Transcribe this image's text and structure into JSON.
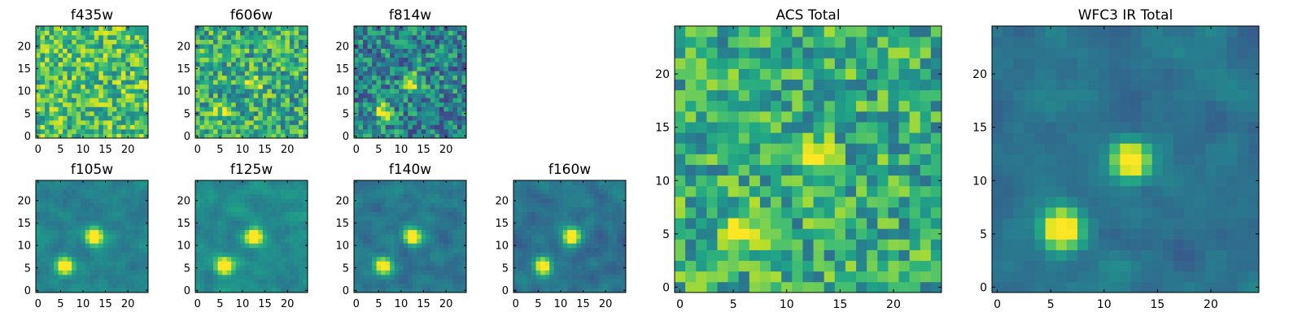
{
  "chart_data": [
    {
      "type": "heatmap",
      "title": "f435w",
      "grid_size": 25,
      "x_ticks": [
        "0",
        "5",
        "10",
        "15",
        "20"
      ],
      "y_ticks": [
        "0",
        "5",
        "10",
        "15",
        "20"
      ],
      "xlim": [
        -0.5,
        24.5
      ],
      "ylim": [
        -0.5,
        24.5
      ],
      "colormap": "viridis",
      "grid": false,
      "sources": []
    },
    {
      "type": "heatmap",
      "title": "f606w",
      "grid_size": 25,
      "x_ticks": [
        "0",
        "5",
        "10",
        "15",
        "20"
      ],
      "y_ticks": [
        "0",
        "5",
        "10",
        "15",
        "20"
      ],
      "xlim": [
        -0.5,
        24.5
      ],
      "ylim": [
        -0.5,
        24.5
      ],
      "colormap": "viridis",
      "grid": false,
      "sources": [
        {
          "x": 12.5,
          "y": 12.0,
          "amp": 0.35
        },
        {
          "x": 6.0,
          "y": 5.5,
          "amp": 0.35
        }
      ]
    },
    {
      "type": "heatmap",
      "title": "f814w",
      "grid_size": 25,
      "x_ticks": [
        "0",
        "5",
        "10",
        "15",
        "20"
      ],
      "y_ticks": [
        "0",
        "5",
        "10",
        "15",
        "20"
      ],
      "xlim": [
        -0.5,
        24.5
      ],
      "ylim": [
        -0.5,
        24.5
      ],
      "colormap": "viridis",
      "grid": false,
      "sources": [
        {
          "x": 12.5,
          "y": 12.0,
          "amp": 0.55
        },
        {
          "x": 6.0,
          "y": 5.5,
          "amp": 0.65
        }
      ]
    },
    {
      "type": "heatmap",
      "title": "f105w",
      "grid_size": 25,
      "x_ticks": [
        "0",
        "5",
        "10",
        "15",
        "20"
      ],
      "y_ticks": [
        "0",
        "5",
        "10",
        "15",
        "20"
      ],
      "xlim": [
        -0.5,
        24.5
      ],
      "ylim": [
        -0.5,
        24.5
      ],
      "colormap": "viridis",
      "grid": false,
      "sources": [
        {
          "x": 12.5,
          "y": 12.0,
          "amp": 0.85
        },
        {
          "x": 6.0,
          "y": 5.5,
          "amp": 0.85
        }
      ]
    },
    {
      "type": "heatmap",
      "title": "f125w",
      "grid_size": 25,
      "x_ticks": [
        "0",
        "5",
        "10",
        "15",
        "20"
      ],
      "y_ticks": [
        "0",
        "5",
        "10",
        "15",
        "20"
      ],
      "xlim": [
        -0.5,
        24.5
      ],
      "ylim": [
        -0.5,
        24.5
      ],
      "colormap": "viridis",
      "grid": false,
      "sources": [
        {
          "x": 12.5,
          "y": 12.0,
          "amp": 0.9
        },
        {
          "x": 6.0,
          "y": 5.5,
          "amp": 0.9
        }
      ]
    },
    {
      "type": "heatmap",
      "title": "f140w",
      "grid_size": 25,
      "x_ticks": [
        "0",
        "5",
        "10",
        "15",
        "20"
      ],
      "y_ticks": [
        "0",
        "5",
        "10",
        "15",
        "20"
      ],
      "xlim": [
        -0.5,
        24.5
      ],
      "ylim": [
        -0.5,
        24.5
      ],
      "colormap": "viridis",
      "grid": false,
      "sources": [
        {
          "x": 12.5,
          "y": 12.0,
          "amp": 0.85
        },
        {
          "x": 6.0,
          "y": 5.5,
          "amp": 0.85
        }
      ]
    },
    {
      "type": "heatmap",
      "title": "f160w",
      "grid_size": 25,
      "x_ticks": [
        "0",
        "5",
        "10",
        "15",
        "20"
      ],
      "y_ticks": [
        "0",
        "5",
        "10",
        "15",
        "20"
      ],
      "xlim": [
        -0.5,
        24.5
      ],
      "ylim": [
        -0.5,
        24.5
      ],
      "colormap": "viridis",
      "grid": false,
      "sources": [
        {
          "x": 12.5,
          "y": 12.0,
          "amp": 0.85
        },
        {
          "x": 6.0,
          "y": 5.5,
          "amp": 0.85
        }
      ]
    },
    {
      "type": "heatmap",
      "title": "ACS Total",
      "grid_size": 25,
      "x_ticks": [
        "0",
        "5",
        "10",
        "15",
        "20"
      ],
      "y_ticks": [
        "0",
        "5",
        "10",
        "15",
        "20"
      ],
      "xlim": [
        -0.5,
        24.5
      ],
      "ylim": [
        -0.5,
        24.5
      ],
      "colormap": "viridis",
      "grid": false,
      "sources": [
        {
          "x": 12.5,
          "y": 12.0,
          "amp": 0.4
        },
        {
          "x": 6.0,
          "y": 5.5,
          "amp": 0.45
        }
      ]
    },
    {
      "type": "heatmap",
      "title": "WFC3 IR Total",
      "grid_size": 25,
      "x_ticks": [
        "0",
        "5",
        "10",
        "15",
        "20"
      ],
      "y_ticks": [
        "0",
        "5",
        "10",
        "15",
        "20"
      ],
      "xlim": [
        -0.5,
        24.5
      ],
      "ylim": [
        -0.5,
        24.5
      ],
      "colormap": "viridis",
      "grid": false,
      "sources": [
        {
          "x": 12.5,
          "y": 12.0,
          "amp": 0.85
        },
        {
          "x": 6.0,
          "y": 5.5,
          "amp": 0.85
        }
      ]
    }
  ]
}
